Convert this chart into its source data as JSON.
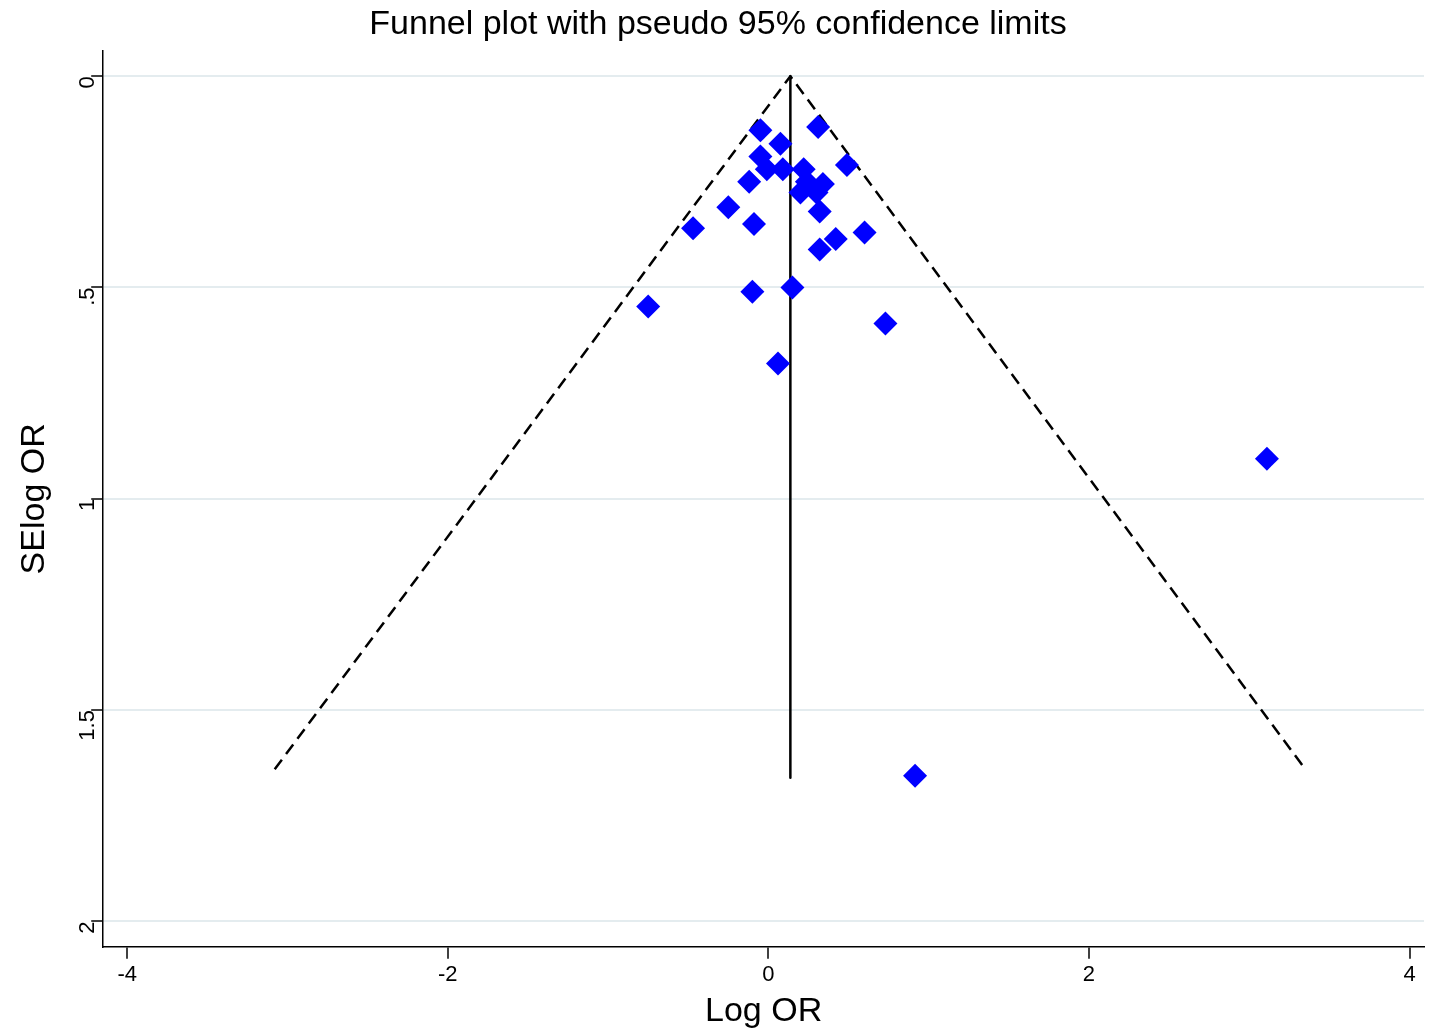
{
  "chart_data": {
    "type": "scatter",
    "title": "Funnel plot with pseudo 95% confidence limits",
    "xlabel": "Log OR",
    "ylabel": "SElog OR",
    "xlim": [
      -4.15,
      4.09
    ],
    "xticks": [
      -4,
      -2,
      0,
      2,
      4
    ],
    "ylim": [
      2.06,
      -0.06
    ],
    "yticks": [
      0,
      {
        "value": 0.5,
        "label": ".5"
      },
      1,
      1.5,
      2
    ],
    "grid": "y",
    "legend": false,
    "series": [
      {
        "type": "scatter",
        "color": "#0000ff",
        "marker": "diamond",
        "x": [
          -0.05,
          0.075,
          0.31,
          -0.05,
          -0.01,
          0.09,
          -0.12,
          0.49,
          0.22,
          0.24,
          0.2,
          0.34,
          0.3,
          0.32,
          -0.25,
          -0.09,
          -0.47,
          0.6,
          0.42,
          0.32,
          -0.1,
          0.15,
          -0.75,
          0.73,
          0.06,
          3.11,
          0.915
        ],
        "values": [
          0.128,
          0.16,
          0.12,
          0.19,
          0.22,
          0.22,
          0.25,
          0.21,
          0.22,
          0.25,
          0.275,
          0.255,
          0.275,
          0.32,
          0.31,
          0.35,
          0.36,
          0.37,
          0.385,
          0.41,
          0.51,
          0.5,
          0.545,
          0.585,
          0.68,
          0.905,
          1.655
        ]
      },
      {
        "type": "line",
        "color": "#000000",
        "line_style": "dashed",
        "marker": "none",
        "x": [
          -3.08,
          0.137,
          3.35
        ],
        "values": [
          1.64,
          0,
          1.64
        ]
      },
      {
        "type": "line",
        "color": "#000000",
        "line_style": "solid",
        "marker": "none",
        "x": [
          0.137,
          0.137
        ],
        "values": [
          0,
          1.66
        ]
      }
    ]
  }
}
